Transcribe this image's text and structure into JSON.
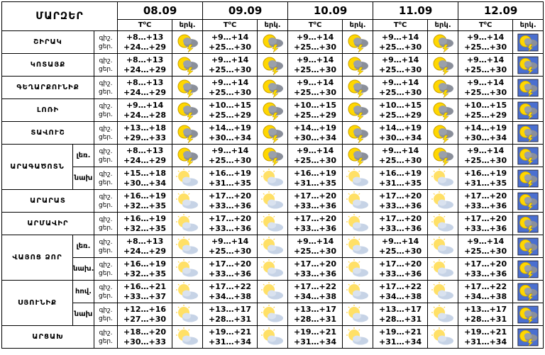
{
  "header": {
    "title": "ՄԱՐԶԵՐ",
    "dates": [
      "08.09",
      "09.09",
      "10.09",
      "11.09",
      "12.09"
    ],
    "temp_label": "T⁰C",
    "weather_label": "երկ."
  },
  "night_label": "գիշ.",
  "day_label": "ցեր.",
  "regions": [
    {
      "name": "ՇԻՐԱԿ",
      "rows": [
        {
          "days": [
            {
              "night": "+8…+13",
              "day": "+24…+29"
            },
            {
              "night": "+9…+14",
              "day": "+25…+30"
            },
            {
              "night": "+9…+14",
              "day": "+25…+30"
            },
            {
              "night": "+9…+14",
              "day": "+25…+30"
            },
            {
              "night": "+9…+14",
              "day": "+25…+30"
            }
          ]
        }
      ]
    },
    {
      "name": "ԿՈՏԱՅՔ",
      "rows": [
        {
          "days": [
            {
              "night": "+8…+13",
              "day": "+24…+29"
            },
            {
              "night": "+9…+14",
              "day": "+25…+30"
            },
            {
              "night": "+9…+14",
              "day": "+25…+30"
            },
            {
              "night": "+9…+14",
              "day": "+25…+30"
            },
            {
              "night": "+9…+14",
              "day": "+25…+30"
            }
          ]
        }
      ]
    },
    {
      "name": "ԳԵՂԱՐՔՈՒՆԻՔ",
      "rows": [
        {
          "days": [
            {
              "night": "+8…+13",
              "day": "+24…+29"
            },
            {
              "night": "+9…+14",
              "day": "+25…+30"
            },
            {
              "night": "+9…+14",
              "day": "+25…+30"
            },
            {
              "night": "+9…+14",
              "day": "+25…+30"
            },
            {
              "night": "+9…+14",
              "day": "+25…+30"
            }
          ]
        }
      ]
    },
    {
      "name": "ԼՈՌԻ",
      "rows": [
        {
          "days": [
            {
              "night": "+9…+14",
              "day": "+24…+28"
            },
            {
              "night": "+10…+15",
              "day": "+25…+29"
            },
            {
              "night": "+10…+15",
              "day": "+25…+29"
            },
            {
              "night": "+10…+15",
              "day": "+25…+29"
            },
            {
              "night": "+10…+15",
              "day": "+25…+29"
            }
          ]
        }
      ]
    },
    {
      "name": "ՏԱՎՈՒՇ",
      "rows": [
        {
          "days": [
            {
              "night": "+13…+18",
              "day": "+29…+33"
            },
            {
              "night": "+14…+19",
              "day": "+30…+34"
            },
            {
              "night": "+14…+19",
              "day": "+30…+34"
            },
            {
              "night": "+14…+19",
              "day": "+30…+34"
            },
            {
              "night": "+14…+19",
              "day": "+30…+34"
            }
          ]
        }
      ]
    },
    {
      "name": "ԱՐԱԳԱԾՈՏՆ",
      "rows": [
        {
          "zone": "լեռ.",
          "days": [
            {
              "night": "+8…+13",
              "day": "+24…+29"
            },
            {
              "night": "+9…+14",
              "day": "+25…+30"
            },
            {
              "night": "+9…+14",
              "day": "+25…+30"
            },
            {
              "night": "+9…+14",
              "day": "+25…+30"
            },
            {
              "night": "+9…+14",
              "day": "+25…+30"
            }
          ]
        },
        {
          "zone": "նախ",
          "days": [
            {
              "night": "+15…+18",
              "day": "+30…+34"
            },
            {
              "night": "+16…+19",
              "day": "+31…+35"
            },
            {
              "night": "+16…+19",
              "day": "+31…+35"
            },
            {
              "night": "+16…+19",
              "day": "+31…+35"
            },
            {
              "night": "+16…+19",
              "day": "+31…+35"
            }
          ]
        }
      ]
    },
    {
      "name": "ԱՐԱՐԱՏ",
      "rows": [
        {
          "days": [
            {
              "night": "+16…+19",
              "day": "+32…+35"
            },
            {
              "night": "+17…+20",
              "day": "+33…+36"
            },
            {
              "night": "+17…+20",
              "day": "+33…+36"
            },
            {
              "night": "+17…+20",
              "day": "+33…+36"
            },
            {
              "night": "+17…+20",
              "day": "+33…+36"
            }
          ]
        }
      ]
    },
    {
      "name": "ԱՐՄԱՎԻՐ",
      "rows": [
        {
          "days": [
            {
              "night": "+16…+19",
              "day": "+32…+35"
            },
            {
              "night": "+17…+20",
              "day": "+33…+36"
            },
            {
              "night": "+17…+20",
              "day": "+33…+36"
            },
            {
              "night": "+17…+20",
              "day": "+33…+36"
            },
            {
              "night": "+17…+20",
              "day": "+33…+36"
            }
          ]
        }
      ]
    },
    {
      "name": "ՎԱՅՈՑ ՁՈՐ",
      "rows": [
        {
          "zone": "լեռ.",
          "days": [
            {
              "night": "+8…+13",
              "day": "+24…+29"
            },
            {
              "night": "+9…+14",
              "day": "+25…+30"
            },
            {
              "night": "+9…+14",
              "day": "+25…+30"
            },
            {
              "night": "+9…+14",
              "day": "+25…+30"
            },
            {
              "night": "+9…+14",
              "day": "+25…+30"
            }
          ]
        },
        {
          "zone": "նախ.",
          "days": [
            {
              "night": "+16…+19",
              "day": "+32…+35"
            },
            {
              "night": "+17…+20",
              "day": "+33…+36"
            },
            {
              "night": "+17…+20",
              "day": "+33…+36"
            },
            {
              "night": "+17…+20",
              "day": "+33…+36"
            },
            {
              "night": "+17…+20",
              "day": "+33…+36"
            }
          ]
        }
      ]
    },
    {
      "name": "ՍՅՈՒՆԻՔ",
      "rows": [
        {
          "zone": "հով.",
          "days": [
            {
              "night": "+16…+21",
              "day": "+33…+37"
            },
            {
              "night": "+17…+22",
              "day": "+34…+38"
            },
            {
              "night": "+17…+22",
              "day": "+34…+38"
            },
            {
              "night": "+17…+22",
              "day": "+34…+38"
            },
            {
              "night": "+17…+22",
              "day": "+34…+38"
            }
          ]
        },
        {
          "zone": "նախ",
          "days": [
            {
              "night": "+12…+16",
              "day": "+27…+30"
            },
            {
              "night": "+13…+17",
              "day": "+28…+31"
            },
            {
              "night": "+13…+17",
              "day": "+28…+31"
            },
            {
              "night": "+13…+17",
              "day": "+28…+31"
            },
            {
              "night": "+13…+17",
              "day": "+28…+31"
            }
          ]
        }
      ]
    },
    {
      "name": "ԱՐՑԱԽ",
      "rows": [
        {
          "days": [
            {
              "night": "+18…+20",
              "day": "+30…+33"
            },
            {
              "night": "+19…+21",
              "day": "+31…+34"
            },
            {
              "night": "+19…+21",
              "day": "+31…+34"
            },
            {
              "night": "+19…+21",
              "day": "+31…+34"
            },
            {
              "night": "+19…+21",
              "day": "+31…+34"
            }
          ]
        }
      ]
    }
  ]
}
